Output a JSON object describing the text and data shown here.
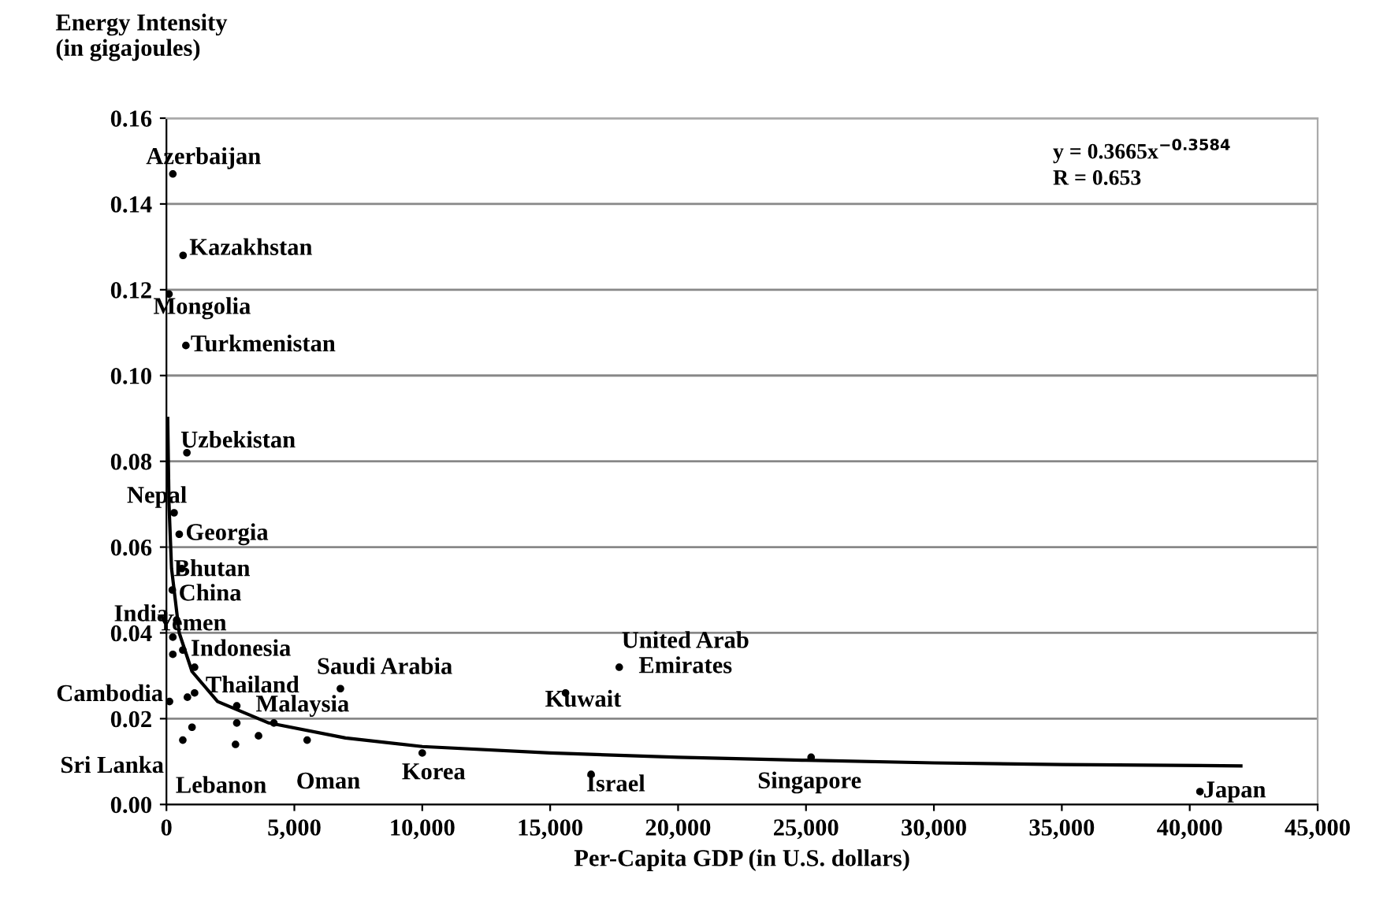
{
  "chart_data": {
    "type": "scatter",
    "xlabel": "Per-Capita GDP (in U.S. dollars)",
    "ylabel": "Energy Intensity\n(in gigajoules)",
    "xlim": [
      0,
      45000
    ],
    "xticks": [
      {
        "value": 0,
        "label": "0"
      },
      {
        "value": 5000,
        "label": "5,000"
      },
      {
        "value": 10000,
        "label": "10,000"
      },
      {
        "value": 15000,
        "label": "15,000"
      },
      {
        "value": 20000,
        "label": "20,000"
      },
      {
        "value": 25000,
        "label": "25,000"
      },
      {
        "value": 30000,
        "label": "30,000"
      },
      {
        "value": 35000,
        "label": "35,000"
      },
      {
        "value": 40000,
        "label": "40,000"
      },
      {
        "value": 45000,
        "label": "45,000"
      }
    ],
    "ylim": [
      0,
      0.16
    ],
    "yticks": [
      {
        "value": 0,
        "label": "0.00"
      },
      {
        "value": 0.02,
        "label": "0.02"
      },
      {
        "value": 0.04,
        "label": "0.04"
      },
      {
        "value": 0.06,
        "label": "0.06"
      },
      {
        "value": 0.08,
        "label": "0.08"
      },
      {
        "value": 0.1,
        "label": "0.10"
      },
      {
        "value": 0.12,
        "label": "0.12"
      },
      {
        "value": 0.14,
        "label": "0.14"
      },
      {
        "value": 0.16,
        "label": "0.16"
      }
    ],
    "grid": "y",
    "legend": false,
    "series": [
      {
        "color": "#000000",
        "marker": "circle",
        "x": [
          250,
          650,
          100,
          760,
          800,
          300,
          500,
          600,
          230,
          400,
          250,
          640,
          250,
          1100,
          6800,
          1100,
          120,
          820,
          2750,
          2750,
          4200,
          1000,
          640,
          2700,
          5500,
          10000,
          16600,
          25200,
          40400,
          17700,
          15600,
          3600
        ],
        "values": [
          0.147,
          0.128,
          0.119,
          0.107,
          0.082,
          0.068,
          0.063,
          0.055,
          0.05,
          0.043,
          0.039,
          0.036,
          0.035,
          0.032,
          0.027,
          0.026,
          0.024,
          0.025,
          0.023,
          0.019,
          0.019,
          0.018,
          0.015,
          0.014,
          0.015,
          0.012,
          0.007,
          0.011,
          0.003,
          0.032,
          0.026,
          0.016
        ]
      },
      {
        "type": "line",
        "color": "#000000",
        "line_style": "solid",
        "marker": "none",
        "x": [
          50,
          100,
          200,
          500,
          1000,
          2000,
          4000,
          7000,
          10000,
          15000,
          20000,
          25000,
          30000,
          35000,
          42000
        ],
        "values": [
          0.09,
          0.07,
          0.055,
          0.04,
          0.031,
          0.024,
          0.019,
          0.0155,
          0.0135,
          0.012,
          0.011,
          0.0103,
          0.0097,
          0.0093,
          0.009
        ]
      }
    ],
    "annotations": [
      {
        "text": "Azerbaijan",
        "x": 250,
        "y": 0.147
      },
      {
        "text": "Kazakhstan",
        "x": 650,
        "y": 0.128
      },
      {
        "text": "Mongolia",
        "x": 100,
        "y": 0.119
      },
      {
        "text": "Turkmenistan",
        "x": 760,
        "y": 0.107
      },
      {
        "text": "Uzbekistan",
        "x": 800,
        "y": 0.082
      },
      {
        "text": "Nepal",
        "x": 300,
        "y": 0.068
      },
      {
        "text": "Georgia",
        "x": 500,
        "y": 0.063
      },
      {
        "text": "Bhutan",
        "x": 600,
        "y": 0.055
      },
      {
        "text": "China",
        "x": 230,
        "y": 0.05
      },
      {
        "text": "India",
        "x": 400,
        "y": 0.043
      },
      {
        "text": "Yemen",
        "x": 250,
        "y": 0.039
      },
      {
        "text": "Indonesia",
        "x": 640,
        "y": 0.036
      },
      {
        "text": "Saudi Arabia",
        "x": 6800,
        "y": 0.027
      },
      {
        "text": "Thailand",
        "x": 1100,
        "y": 0.026
      },
      {
        "text": "Cambodia",
        "x": 120,
        "y": 0.024
      },
      {
        "text": "Malaysia",
        "x": 2750,
        "y": 0.023
      },
      {
        "text": "Sri Lanka",
        "x": 640,
        "y": 0.015
      },
      {
        "text": "Lebanon",
        "x": 2700,
        "y": 0.014
      },
      {
        "text": "Oman",
        "x": 5500,
        "y": 0.015
      },
      {
        "text": "Korea",
        "x": 10000,
        "y": 0.012
      },
      {
        "text": "Israel",
        "x": 16600,
        "y": 0.007
      },
      {
        "text": "Singapore",
        "x": 25200,
        "y": 0.011
      },
      {
        "text": "Japan",
        "x": 40400,
        "y": 0.003
      },
      {
        "text": "United Arab\nEmirates",
        "x": 17700,
        "y": 0.032
      },
      {
        "text": "Kuwait",
        "x": 15600,
        "y": 0.026
      },
      "y = 0.3665x$^{−0.3584}$\nR = 0.653"
    ]
  }
}
